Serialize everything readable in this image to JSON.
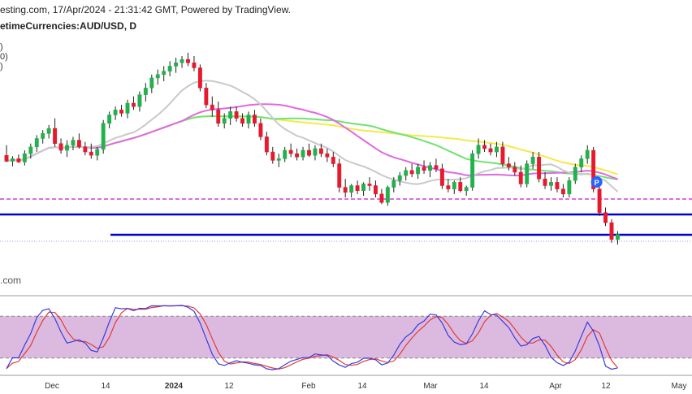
{
  "header": {
    "line1": "esting.com, 17/Apr/2024 - 21:31:42 GMT, Powered by TradingView.",
    "symbol": "etimeCurrencies:AUD/USD, D",
    "legend_fragments": [
      ")",
      "0)",
      ")"
    ]
  },
  "watermark": ".com",
  "marker": {
    "label": "P",
    "color": "#2962ff"
  },
  "colors": {
    "up": "#22b14c",
    "down": "#e8192c",
    "ma_yellow": "#f5e94a",
    "ma_green": "#6fe36f",
    "ma_gray": "#c9c9c9",
    "ma_magenta": "#e06adf",
    "support": "#0000cc",
    "dashed_magenta": "#d63ed6",
    "stoch_band": "#dcbadf",
    "stoch_k": "#3b3bdc",
    "stoch_d": "#e23a3a"
  },
  "chart_data": {
    "type": "candlestick",
    "title": "AUD/USD, D",
    "x_labels": [
      "Dec",
      "14",
      "2024",
      "12",
      "Feb",
      "14",
      "Mar",
      "14",
      "Apr",
      "12",
      "May"
    ],
    "x_labels_bold": [
      "2024"
    ],
    "candles": [
      {
        "o": 54,
        "h": 66,
        "l": 46,
        "c": 47
      },
      {
        "o": 47,
        "h": 53,
        "l": 41,
        "c": 50
      },
      {
        "o": 50,
        "h": 55,
        "l": 45,
        "c": 46
      },
      {
        "o": 46,
        "h": 60,
        "l": 42,
        "c": 56
      },
      {
        "o": 56,
        "h": 68,
        "l": 50,
        "c": 64
      },
      {
        "o": 64,
        "h": 78,
        "l": 58,
        "c": 74
      },
      {
        "o": 74,
        "h": 84,
        "l": 68,
        "c": 80
      },
      {
        "o": 80,
        "h": 90,
        "l": 74,
        "c": 86
      },
      {
        "o": 86,
        "h": 98,
        "l": 64,
        "c": 68
      },
      {
        "o": 68,
        "h": 74,
        "l": 56,
        "c": 60
      },
      {
        "o": 60,
        "h": 72,
        "l": 52,
        "c": 66
      },
      {
        "o": 66,
        "h": 76,
        "l": 60,
        "c": 72
      },
      {
        "o": 72,
        "h": 80,
        "l": 62,
        "c": 64
      },
      {
        "o": 64,
        "h": 70,
        "l": 54,
        "c": 58
      },
      {
        "o": 58,
        "h": 68,
        "l": 50,
        "c": 54
      },
      {
        "o": 54,
        "h": 64,
        "l": 48,
        "c": 61
      },
      {
        "o": 61,
        "h": 96,
        "l": 56,
        "c": 92
      },
      {
        "o": 92,
        "h": 106,
        "l": 86,
        "c": 102
      },
      {
        "o": 102,
        "h": 112,
        "l": 96,
        "c": 108
      },
      {
        "o": 108,
        "h": 114,
        "l": 100,
        "c": 104
      },
      {
        "o": 104,
        "h": 120,
        "l": 98,
        "c": 116
      },
      {
        "o": 116,
        "h": 124,
        "l": 108,
        "c": 112
      },
      {
        "o": 112,
        "h": 130,
        "l": 106,
        "c": 126
      },
      {
        "o": 126,
        "h": 140,
        "l": 118,
        "c": 134
      },
      {
        "o": 134,
        "h": 150,
        "l": 128,
        "c": 146
      },
      {
        "o": 146,
        "h": 156,
        "l": 138,
        "c": 150
      },
      {
        "o": 150,
        "h": 160,
        "l": 142,
        "c": 154
      },
      {
        "o": 154,
        "h": 166,
        "l": 148,
        "c": 160
      },
      {
        "o": 160,
        "h": 170,
        "l": 152,
        "c": 164
      },
      {
        "o": 164,
        "h": 172,
        "l": 158,
        "c": 168
      },
      {
        "o": 168,
        "h": 176,
        "l": 160,
        "c": 164
      },
      {
        "o": 164,
        "h": 172,
        "l": 154,
        "c": 158
      },
      {
        "o": 158,
        "h": 162,
        "l": 130,
        "c": 134
      },
      {
        "o": 134,
        "h": 140,
        "l": 110,
        "c": 114
      },
      {
        "o": 114,
        "h": 124,
        "l": 100,
        "c": 108
      },
      {
        "o": 108,
        "h": 118,
        "l": 88,
        "c": 92
      },
      {
        "o": 92,
        "h": 104,
        "l": 86,
        "c": 98
      },
      {
        "o": 98,
        "h": 112,
        "l": 90,
        "c": 106
      },
      {
        "o": 106,
        "h": 112,
        "l": 94,
        "c": 98
      },
      {
        "o": 98,
        "h": 104,
        "l": 88,
        "c": 92
      },
      {
        "o": 92,
        "h": 106,
        "l": 86,
        "c": 102
      },
      {
        "o": 102,
        "h": 108,
        "l": 88,
        "c": 92
      },
      {
        "o": 92,
        "h": 98,
        "l": 72,
        "c": 76
      },
      {
        "o": 76,
        "h": 82,
        "l": 54,
        "c": 58
      },
      {
        "o": 58,
        "h": 64,
        "l": 44,
        "c": 48
      },
      {
        "o": 48,
        "h": 56,
        "l": 40,
        "c": 50
      },
      {
        "o": 50,
        "h": 64,
        "l": 46,
        "c": 60
      },
      {
        "o": 60,
        "h": 68,
        "l": 52,
        "c": 56
      },
      {
        "o": 56,
        "h": 62,
        "l": 48,
        "c": 52
      },
      {
        "o": 52,
        "h": 64,
        "l": 48,
        "c": 60
      },
      {
        "o": 60,
        "h": 68,
        "l": 52,
        "c": 54
      },
      {
        "o": 54,
        "h": 66,
        "l": 48,
        "c": 62
      },
      {
        "o": 62,
        "h": 68,
        "l": 52,
        "c": 56
      },
      {
        "o": 56,
        "h": 62,
        "l": 46,
        "c": 52
      },
      {
        "o": 52,
        "h": 58,
        "l": 40,
        "c": 44
      },
      {
        "o": 44,
        "h": 50,
        "l": 10,
        "c": 16
      },
      {
        "o": 16,
        "h": 26,
        "l": 4,
        "c": 10
      },
      {
        "o": 10,
        "h": 20,
        "l": 4,
        "c": 18
      },
      {
        "o": 18,
        "h": 24,
        "l": 8,
        "c": 12
      },
      {
        "o": 12,
        "h": 22,
        "l": 6,
        "c": 20
      },
      {
        "o": 20,
        "h": 28,
        "l": 12,
        "c": 18
      },
      {
        "o": 18,
        "h": 24,
        "l": 4,
        "c": 8
      },
      {
        "o": 8,
        "h": 14,
        "l": -4,
        "c": -2
      },
      {
        "o": -2,
        "h": 18,
        "l": -6,
        "c": 16
      },
      {
        "o": 16,
        "h": 28,
        "l": 10,
        "c": 24
      },
      {
        "o": 24,
        "h": 34,
        "l": 18,
        "c": 30
      },
      {
        "o": 30,
        "h": 40,
        "l": 24,
        "c": 36
      },
      {
        "o": 36,
        "h": 44,
        "l": 28,
        "c": 32
      },
      {
        "o": 32,
        "h": 44,
        "l": 26,
        "c": 40
      },
      {
        "o": 40,
        "h": 48,
        "l": 32,
        "c": 36
      },
      {
        "o": 36,
        "h": 46,
        "l": 28,
        "c": 42
      },
      {
        "o": 42,
        "h": 50,
        "l": 34,
        "c": 38
      },
      {
        "o": 38,
        "h": 44,
        "l": 14,
        "c": 18
      },
      {
        "o": 18,
        "h": 26,
        "l": 10,
        "c": 14
      },
      {
        "o": 14,
        "h": 24,
        "l": 8,
        "c": 22
      },
      {
        "o": 22,
        "h": 28,
        "l": 10,
        "c": 12
      },
      {
        "o": 12,
        "h": 18,
        "l": 6,
        "c": 16
      },
      {
        "o": 16,
        "h": 60,
        "l": 12,
        "c": 56
      },
      {
        "o": 56,
        "h": 74,
        "l": 50,
        "c": 66
      },
      {
        "o": 66,
        "h": 72,
        "l": 58,
        "c": 62
      },
      {
        "o": 62,
        "h": 68,
        "l": 54,
        "c": 58
      },
      {
        "o": 58,
        "h": 70,
        "l": 52,
        "c": 64
      },
      {
        "o": 64,
        "h": 70,
        "l": 40,
        "c": 44
      },
      {
        "o": 44,
        "h": 52,
        "l": 36,
        "c": 40
      },
      {
        "o": 40,
        "h": 46,
        "l": 30,
        "c": 34
      },
      {
        "o": 34,
        "h": 42,
        "l": 16,
        "c": 20
      },
      {
        "o": 20,
        "h": 48,
        "l": 16,
        "c": 44
      },
      {
        "o": 44,
        "h": 58,
        "l": 38,
        "c": 52
      },
      {
        "o": 52,
        "h": 58,
        "l": 22,
        "c": 26
      },
      {
        "o": 26,
        "h": 34,
        "l": 14,
        "c": 18
      },
      {
        "o": 18,
        "h": 28,
        "l": 12,
        "c": 22
      },
      {
        "o": 22,
        "h": 28,
        "l": 10,
        "c": 14
      },
      {
        "o": 14,
        "h": 20,
        "l": 4,
        "c": 8
      },
      {
        "o": 8,
        "h": 28,
        "l": 4,
        "c": 24
      },
      {
        "o": 24,
        "h": 44,
        "l": 20,
        "c": 40
      },
      {
        "o": 40,
        "h": 54,
        "l": 34,
        "c": 50
      },
      {
        "o": 50,
        "h": 66,
        "l": 44,
        "c": 60
      },
      {
        "o": 60,
        "h": 64,
        "l": 10,
        "c": 14
      },
      {
        "o": 14,
        "h": 22,
        "l": -18,
        "c": -14
      },
      {
        "o": -14,
        "h": -8,
        "l": -30,
        "c": -26
      },
      {
        "o": -26,
        "h": -22,
        "l": -50,
        "c": -46
      },
      {
        "o": -46,
        "h": -36,
        "l": -52,
        "c": -40
      }
    ]
  }
}
